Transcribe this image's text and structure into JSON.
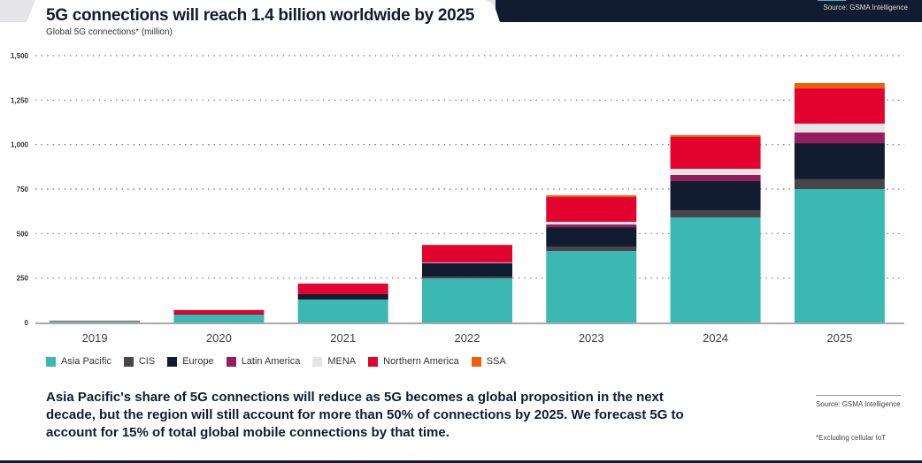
{
  "header": {
    "title": "5G connections will reach 1.4 billion worldwide by 2025",
    "subtitle": "Global 5G connections* (million)",
    "source_top": "Source: GSMA Intelligence"
  },
  "note": "Asia Pacific's share of 5G connections will reduce as 5G becomes a global proposition in the next decade, but the region will still account for more than 50% of connections by 2025. We forecast 5G to account for 15% of total global mobile connections by that time.",
  "source_bottom": "Source: GSMA Intelligence",
  "footnote": "*Excluding cellular IoT",
  "chart_data": {
    "type": "bar",
    "stacked": true,
    "title": "5G connections will reach 1.4 billion worldwide by 2025",
    "ylabel": "Global 5G connections* (million)",
    "ylim": [
      0,
      1500
    ],
    "yticks": [
      0,
      250,
      500,
      750,
      "1,000",
      "1,250",
      "1,500"
    ],
    "ytick_values": [
      0,
      250,
      500,
      750,
      1000,
      1250,
      1500
    ],
    "grid": true,
    "legend": "bottom",
    "categories": [
      "2019",
      "2020",
      "2021",
      "2022",
      "2023",
      "2024",
      "2025"
    ],
    "series": [
      {
        "name": "Asia Pacific",
        "color": "#3bb7b4",
        "values": [
          8,
          44,
          129,
          248,
          402,
          591,
          750
        ]
      },
      {
        "name": "CIS",
        "color": "#4a4548",
        "values": [
          0,
          0,
          0,
          10,
          25,
          40,
          55
        ]
      },
      {
        "name": "Europe",
        "color": "#121c30",
        "values": [
          0,
          3,
          30,
          75,
          109,
          164,
          203
        ]
      },
      {
        "name": "Latin America",
        "color": "#961c5e",
        "values": [
          0,
          0,
          0,
          2,
          15,
          35,
          60
        ]
      },
      {
        "name": "MENA",
        "color": "#e5e5e8",
        "values": [
          0,
          0,
          0,
          3,
          15,
          34,
          50
        ]
      },
      {
        "name": "Northern America",
        "color": "#e4032e",
        "values": [
          2,
          23,
          60,
          97,
          139,
          179,
          198
        ]
      },
      {
        "name": "SSA",
        "color": "#ee5f0a",
        "values": [
          1,
          0,
          0,
          2,
          10,
          10,
          30
        ]
      }
    ]
  },
  "colors": {
    "header_dark": "#121c30"
  }
}
